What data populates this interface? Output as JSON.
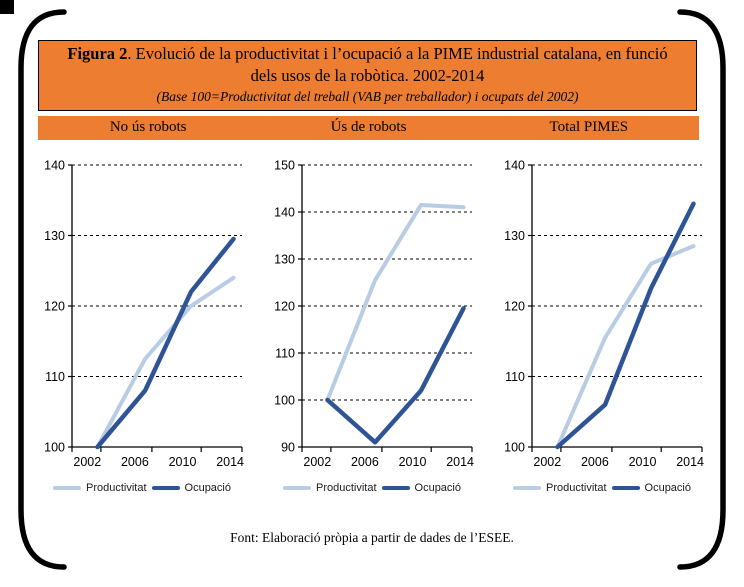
{
  "figure": {
    "title_prefix": "Figura 2",
    "title_line1_rest": ". Evolució de la productivitat i l’ocupació a la PIME industrial catalana, en funció",
    "title_line2": "dels usos de la robòtica. 2002-2014",
    "subtitle": "(Base 100=Productivitat del treball (VAB per treballador) i ocupats del 2002)",
    "footer": "Font: Elaboració pròpia a partir de dades de l’ESEE."
  },
  "colors": {
    "header_orange": "#ED7D31",
    "productivitat_line": "#B8CCE4",
    "ocupacio_line": "#2F5496",
    "axis": "#000000"
  },
  "legend": {
    "productivitat": "Productivitat",
    "ocupacio": "Ocupació"
  },
  "chart_data": [
    {
      "type": "line",
      "title": "No ús robots",
      "categories": [
        "2002",
        "2006",
        "2010",
        "2014"
      ],
      "series": [
        {
          "name": "Productivitat",
          "values": [
            100,
            112.5,
            120,
            124
          ]
        },
        {
          "name": "Ocupació",
          "values": [
            100,
            108,
            122,
            129.5
          ]
        }
      ],
      "ylim": [
        100,
        140
      ],
      "yticks": [
        100,
        110,
        120,
        130,
        140
      ],
      "grid": "dashed horizontal",
      "legend_position": "bottom"
    },
    {
      "type": "line",
      "title": "Ús de robots",
      "categories": [
        "2002",
        "2006",
        "2010",
        "2014"
      ],
      "series": [
        {
          "name": "Productivitat",
          "values": [
            100,
            125.5,
            141.5,
            141
          ]
        },
        {
          "name": "Ocupació",
          "values": [
            100,
            91,
            102,
            119.5
          ]
        }
      ],
      "ylim": [
        90,
        150
      ],
      "yticks": [
        90,
        100,
        110,
        120,
        130,
        140,
        150
      ],
      "grid": "dashed horizontal",
      "legend_position": "bottom"
    },
    {
      "type": "line",
      "title": "Total PIMES",
      "categories": [
        "2002",
        "2006",
        "2010",
        "2014"
      ],
      "series": [
        {
          "name": "Productivitat",
          "values": [
            100,
            115.5,
            126,
            128.5
          ]
        },
        {
          "name": "Ocupació",
          "values": [
            100,
            106,
            122.5,
            134.5
          ]
        }
      ],
      "ylim": [
        100,
        140
      ],
      "yticks": [
        100,
        110,
        120,
        130,
        140
      ],
      "grid": "dashed horizontal",
      "legend_position": "bottom"
    }
  ]
}
